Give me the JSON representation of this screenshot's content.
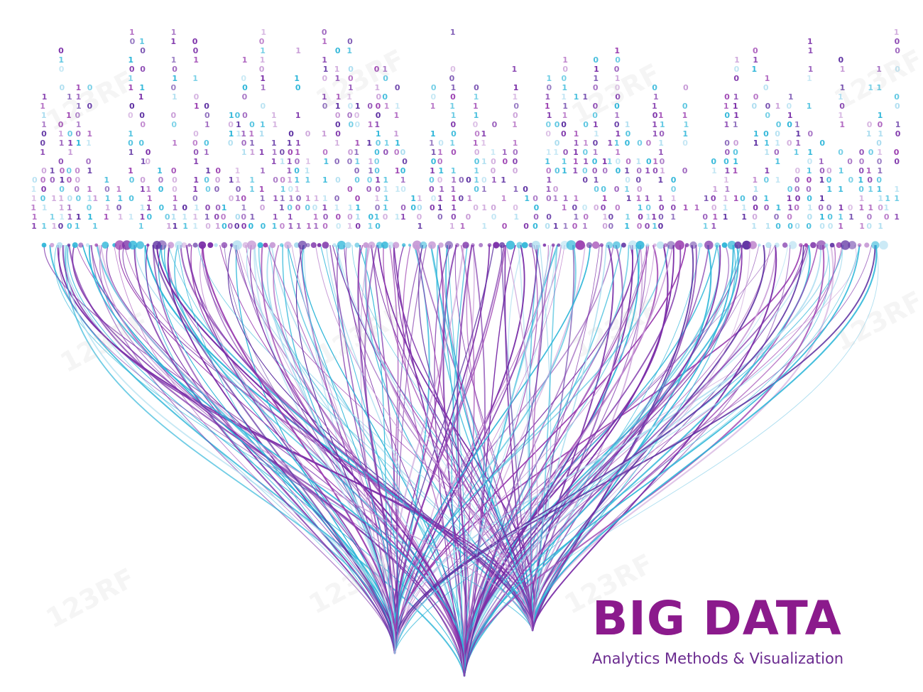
{
  "title": "BIG DATA",
  "subtitle": "Analytics Methods & Visualization",
  "watermark_text": "123RF",
  "colors": {
    "background": "#ffffff",
    "title": "#8b1a8c",
    "subtitle": "#6a2a8f",
    "purple": "#7b2fa8",
    "magenta": "#9b3fb0",
    "violet": "#5b2da0",
    "cyan": "#2bb5d8",
    "light_purple": "#c79ad6",
    "light_cyan": "#a9dcef"
  },
  "icons": [
    "binary-digit-column",
    "data-node-dot",
    "data-stream-curve"
  ]
}
